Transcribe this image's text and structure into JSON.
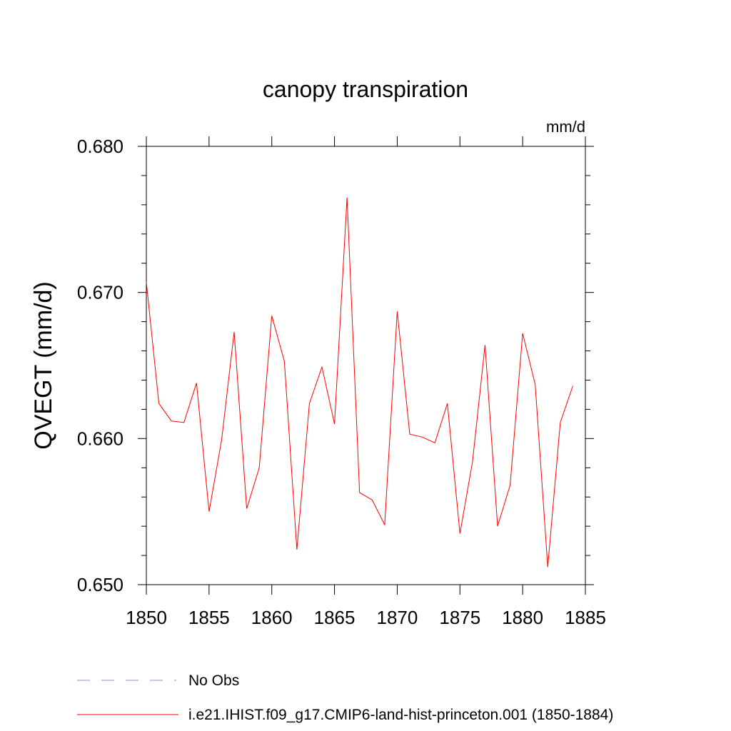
{
  "chart_data": {
    "type": "line",
    "title": "canopy transpiration",
    "units_label": "mm/d",
    "ylabel": "QVEGT  (mm/d)",
    "xlabel": "",
    "xlim": [
      1850,
      1885
    ],
    "ylim": [
      0.65,
      0.68
    ],
    "x_ticks": [
      "1850",
      "1855",
      "1860",
      "1865",
      "1870",
      "1875",
      "1880",
      "1885"
    ],
    "y_ticks": [
      "0.650",
      "0.660",
      "0.670",
      "0.680"
    ],
    "grid": false,
    "legend_position": "bottom",
    "series": [
      {
        "name": "No Obs",
        "color": "#8c8cd0",
        "style": "dashed",
        "x": [],
        "values": []
      },
      {
        "name": "i.e21.IHIST.f09_g17.CMIP6-land-hist-princeton.001 (1850-1884)",
        "color": "#ff0000",
        "style": "solid",
        "x": [
          1850,
          1851,
          1852,
          1853,
          1854,
          1855,
          1856,
          1857,
          1858,
          1859,
          1860,
          1861,
          1862,
          1863,
          1864,
          1865,
          1866,
          1867,
          1868,
          1869,
          1870,
          1871,
          1872,
          1873,
          1874,
          1875,
          1876,
          1877,
          1878,
          1879,
          1880,
          1881,
          1882,
          1883,
          1884
        ],
        "values": [
          0.6707,
          0.6624,
          0.6612,
          0.6611,
          0.6638,
          0.655,
          0.6599,
          0.6673,
          0.6552,
          0.658,
          0.6684,
          0.6653,
          0.6524,
          0.6624,
          0.6649,
          0.661,
          0.6765,
          0.6563,
          0.6558,
          0.6541,
          0.6687,
          0.6603,
          0.6601,
          0.6597,
          0.6624,
          0.6535,
          0.6584,
          0.6664,
          0.654,
          0.6568,
          0.6672,
          0.6637,
          0.6512,
          0.6611,
          0.6636
        ]
      }
    ]
  }
}
